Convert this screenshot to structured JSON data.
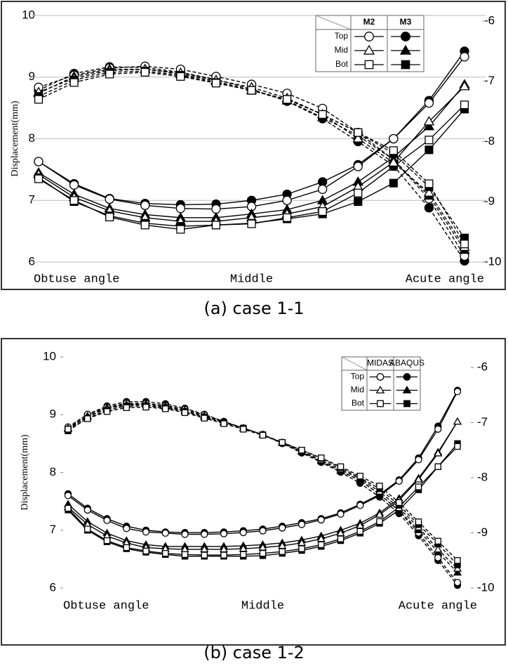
{
  "chart_data": [
    {
      "type": "line",
      "caption": "(a) case 1-1",
      "ylabel": "Displacement(mm)",
      "categories": [
        "Obtuse angle",
        null,
        null,
        null,
        null,
        null,
        "Middle",
        null,
        null,
        null,
        null,
        null,
        "Acute angle"
      ],
      "ylim": [
        6,
        10
      ],
      "yticks": [
        6,
        7,
        8,
        9,
        10
      ],
      "y2lim": [
        -10,
        -6
      ],
      "y2ticks": [
        -10,
        -9,
        -8,
        -7,
        -6
      ],
      "grid": true,
      "legend": {
        "columns": [
          "M2",
          "M3"
        ],
        "rows": [
          "Top",
          "Mid",
          "Bot"
        ],
        "markers": [
          "circle",
          "triangle",
          "square"
        ],
        "fills": [
          "open",
          "filled"
        ]
      },
      "series": [
        {
          "marker": "circle",
          "fill": "filled",
          "dash": "solid",
          "axis": "y",
          "values": [
            7.63,
            7.27,
            7.03,
            6.95,
            6.93,
            6.94,
            7.0,
            7.1,
            7.3,
            7.58,
            8.0,
            8.62,
            9.42
          ]
        },
        {
          "marker": "circle",
          "fill": "open",
          "dash": "solid",
          "axis": "y",
          "values": [
            7.63,
            7.25,
            7.02,
            6.92,
            6.87,
            6.86,
            6.9,
            7.0,
            7.18,
            7.55,
            8.0,
            8.58,
            9.33
          ]
        },
        {
          "marker": "triangle",
          "fill": "filled",
          "dash": "solid",
          "axis": "y",
          "values": [
            7.45,
            7.1,
            6.87,
            6.77,
            6.72,
            6.72,
            6.78,
            6.85,
            7.0,
            7.3,
            7.7,
            8.2,
            8.88
          ]
        },
        {
          "marker": "triangle",
          "fill": "open",
          "dash": "solid",
          "axis": "y",
          "values": [
            7.42,
            7.05,
            6.83,
            6.72,
            6.66,
            6.66,
            6.72,
            6.78,
            6.9,
            7.22,
            7.62,
            8.28,
            8.85
          ]
        },
        {
          "marker": "square",
          "fill": "filled",
          "dash": "solid",
          "axis": "y",
          "values": [
            7.37,
            6.98,
            6.75,
            6.63,
            6.58,
            6.6,
            6.63,
            6.7,
            6.78,
            6.98,
            7.28,
            7.82,
            8.48
          ]
        },
        {
          "marker": "square",
          "fill": "open",
          "dash": "solid",
          "axis": "y",
          "values": [
            7.35,
            7.0,
            6.73,
            6.6,
            6.53,
            6.6,
            6.62,
            6.72,
            6.82,
            7.12,
            7.55,
            7.98,
            8.55
          ]
        },
        {
          "marker": "circle",
          "fill": "filled",
          "dash": "dashed",
          "axis": "y2",
          "values": [
            -7.15,
            -6.87,
            -6.76,
            -6.77,
            -6.85,
            -6.97,
            -7.13,
            -7.33,
            -7.62,
            -8.0,
            -8.4,
            -9.1,
            -9.98
          ]
        },
        {
          "marker": "circle",
          "fill": "open",
          "dash": "dashed",
          "axis": "y2",
          "values": [
            -7.1,
            -6.9,
            -6.78,
            -6.75,
            -6.8,
            -6.92,
            -7.05,
            -7.2,
            -7.45,
            -7.85,
            -8.3,
            -8.95,
            -9.9
          ]
        },
        {
          "marker": "triangle",
          "fill": "filled",
          "dash": "dashed",
          "axis": "y2",
          "values": [
            -7.2,
            -6.92,
            -6.8,
            -6.8,
            -6.88,
            -7.0,
            -7.15,
            -7.32,
            -7.6,
            -7.9,
            -8.3,
            -8.9,
            -9.8
          ]
        },
        {
          "marker": "triangle",
          "fill": "open",
          "dash": "dashed",
          "axis": "y2",
          "values": [
            -7.18,
            -6.95,
            -6.82,
            -6.8,
            -6.86,
            -6.98,
            -7.1,
            -7.28,
            -7.55,
            -7.95,
            -8.35,
            -8.85,
            -9.75
          ]
        },
        {
          "marker": "square",
          "fill": "filled",
          "dash": "dashed",
          "axis": "y2",
          "values": [
            -7.25,
            -6.98,
            -6.85,
            -6.83,
            -6.9,
            -7.02,
            -7.15,
            -7.3,
            -7.55,
            -7.85,
            -8.2,
            -8.75,
            -9.6
          ]
        },
        {
          "marker": "square",
          "fill": "open",
          "dash": "dashed",
          "axis": "y2",
          "values": [
            -7.3,
            -7.02,
            -6.88,
            -6.85,
            -6.92,
            -7.03,
            -7.15,
            -7.3,
            -7.55,
            -7.85,
            -8.15,
            -8.7,
            -9.7
          ]
        }
      ]
    },
    {
      "type": "line",
      "caption": "(b) case 1-2",
      "ylabel": "Displacement(mm)",
      "categories": [
        "Obtuse angle",
        null,
        null,
        null,
        null,
        null,
        null,
        null,
        null,
        null,
        "Middle",
        null,
        null,
        null,
        null,
        null,
        null,
        null,
        null,
        null,
        "Acute angle"
      ],
      "ylim": [
        6,
        10
      ],
      "yticks": [
        6,
        7,
        8,
        9,
        10
      ],
      "y2lim": [
        -10,
        -6
      ],
      "y2ticks": [
        -10,
        -9,
        -8,
        -7,
        -6
      ],
      "grid": false,
      "legend": {
        "columns": [
          "MIDAS",
          "ABAQUS"
        ],
        "rows": [
          "Top",
          "Mid",
          "Bot"
        ],
        "markers": [
          "circle",
          "triangle",
          "square"
        ],
        "fills": [
          "open",
          "filled"
        ]
      },
      "series": [
        {
          "marker": "circle",
          "fill": "filled",
          "dash": "solid",
          "axis": "y",
          "values": [
            7.63,
            7.38,
            7.2,
            7.07,
            7.0,
            6.97,
            6.96,
            6.96,
            6.97,
            6.99,
            7.02,
            7.07,
            7.13,
            7.2,
            7.3,
            7.45,
            7.62,
            7.87,
            8.25,
            8.8,
            9.42
          ]
        },
        {
          "marker": "circle",
          "fill": "open",
          "dash": "solid",
          "axis": "y",
          "values": [
            7.6,
            7.35,
            7.17,
            7.03,
            6.97,
            6.95,
            6.93,
            6.93,
            6.94,
            6.96,
            6.99,
            7.04,
            7.1,
            7.18,
            7.28,
            7.43,
            7.6,
            7.85,
            8.22,
            8.75,
            9.4
          ]
        },
        {
          "marker": "triangle",
          "fill": "filled",
          "dash": "solid",
          "axis": "y",
          "values": [
            7.45,
            7.15,
            6.95,
            6.82,
            6.75,
            6.72,
            6.72,
            6.72,
            6.72,
            6.73,
            6.75,
            6.78,
            6.83,
            6.9,
            7.0,
            7.12,
            7.3,
            7.55,
            7.9,
            8.35,
            8.88
          ]
        },
        {
          "marker": "triangle",
          "fill": "open",
          "dash": "solid",
          "axis": "y",
          "values": [
            7.4,
            7.1,
            6.9,
            6.78,
            6.7,
            6.68,
            6.67,
            6.67,
            6.67,
            6.68,
            6.7,
            6.73,
            6.78,
            6.85,
            6.95,
            7.08,
            7.27,
            7.52,
            7.88,
            8.33,
            8.88
          ]
        },
        {
          "marker": "square",
          "fill": "filled",
          "dash": "solid",
          "axis": "y",
          "values": [
            7.35,
            7.0,
            6.8,
            6.68,
            6.62,
            6.58,
            6.55,
            6.55,
            6.55,
            6.55,
            6.56,
            6.6,
            6.65,
            6.72,
            6.82,
            6.95,
            7.12,
            7.35,
            7.7,
            8.1,
            8.5
          ]
        },
        {
          "marker": "square",
          "fill": "open",
          "dash": "solid",
          "axis": "y",
          "values": [
            7.38,
            7.02,
            6.82,
            6.7,
            6.64,
            6.6,
            6.58,
            6.57,
            6.57,
            6.58,
            6.6,
            6.63,
            6.68,
            6.75,
            6.85,
            6.98,
            7.15,
            7.4,
            7.75,
            8.1,
            8.45
          ]
        },
        {
          "marker": "circle",
          "fill": "filled",
          "dash": "dashed",
          "axis": "y2",
          "values": [
            -7.1,
            -6.85,
            -6.7,
            -6.62,
            -6.62,
            -6.66,
            -6.74,
            -6.85,
            -6.98,
            -7.1,
            -7.22,
            -7.38,
            -7.55,
            -7.72,
            -7.9,
            -8.1,
            -8.35,
            -8.65,
            -9.05,
            -9.5,
            -9.95
          ]
        },
        {
          "marker": "circle",
          "fill": "open",
          "dash": "dashed",
          "axis": "y2",
          "values": [
            -7.08,
            -6.85,
            -6.72,
            -6.65,
            -6.65,
            -6.69,
            -6.76,
            -6.86,
            -6.98,
            -7.1,
            -7.22,
            -7.37,
            -7.53,
            -7.7,
            -7.88,
            -8.05,
            -8.3,
            -8.6,
            -9.0,
            -9.45,
            -9.9
          ]
        },
        {
          "marker": "triangle",
          "fill": "filled",
          "dash": "dashed",
          "axis": "y2",
          "values": [
            -7.12,
            -6.88,
            -6.73,
            -6.67,
            -6.66,
            -6.7,
            -6.78,
            -6.88,
            -6.99,
            -7.1,
            -7.22,
            -7.37,
            -7.53,
            -7.7,
            -7.88,
            -8.05,
            -8.3,
            -8.6,
            -8.95,
            -9.35,
            -9.72
          ]
        },
        {
          "marker": "triangle",
          "fill": "open",
          "dash": "dashed",
          "axis": "y2",
          "values": [
            -7.1,
            -6.9,
            -6.75,
            -6.68,
            -6.68,
            -6.72,
            -6.8,
            -6.9,
            -7.0,
            -7.1,
            -7.22,
            -7.36,
            -7.52,
            -7.68,
            -7.85,
            -8.02,
            -8.25,
            -8.55,
            -8.9,
            -9.3,
            -9.65
          ]
        },
        {
          "marker": "square",
          "fill": "filled",
          "dash": "dashed",
          "axis": "y2",
          "values": [
            -7.15,
            -6.92,
            -6.78,
            -6.7,
            -6.7,
            -6.73,
            -6.8,
            -6.9,
            -7.0,
            -7.1,
            -7.22,
            -7.36,
            -7.5,
            -7.65,
            -7.82,
            -8.0,
            -8.2,
            -8.5,
            -8.85,
            -9.2,
            -9.58
          ]
        },
        {
          "marker": "square",
          "fill": "open",
          "dash": "dashed",
          "axis": "y2",
          "values": [
            -7.12,
            -6.93,
            -6.8,
            -6.73,
            -6.72,
            -6.75,
            -6.82,
            -6.92,
            -7.02,
            -7.12,
            -7.23,
            -7.36,
            -7.5,
            -7.64,
            -7.8,
            -7.97,
            -8.15,
            -8.45,
            -8.8,
            -9.15,
            -9.5
          ]
        }
      ]
    }
  ]
}
